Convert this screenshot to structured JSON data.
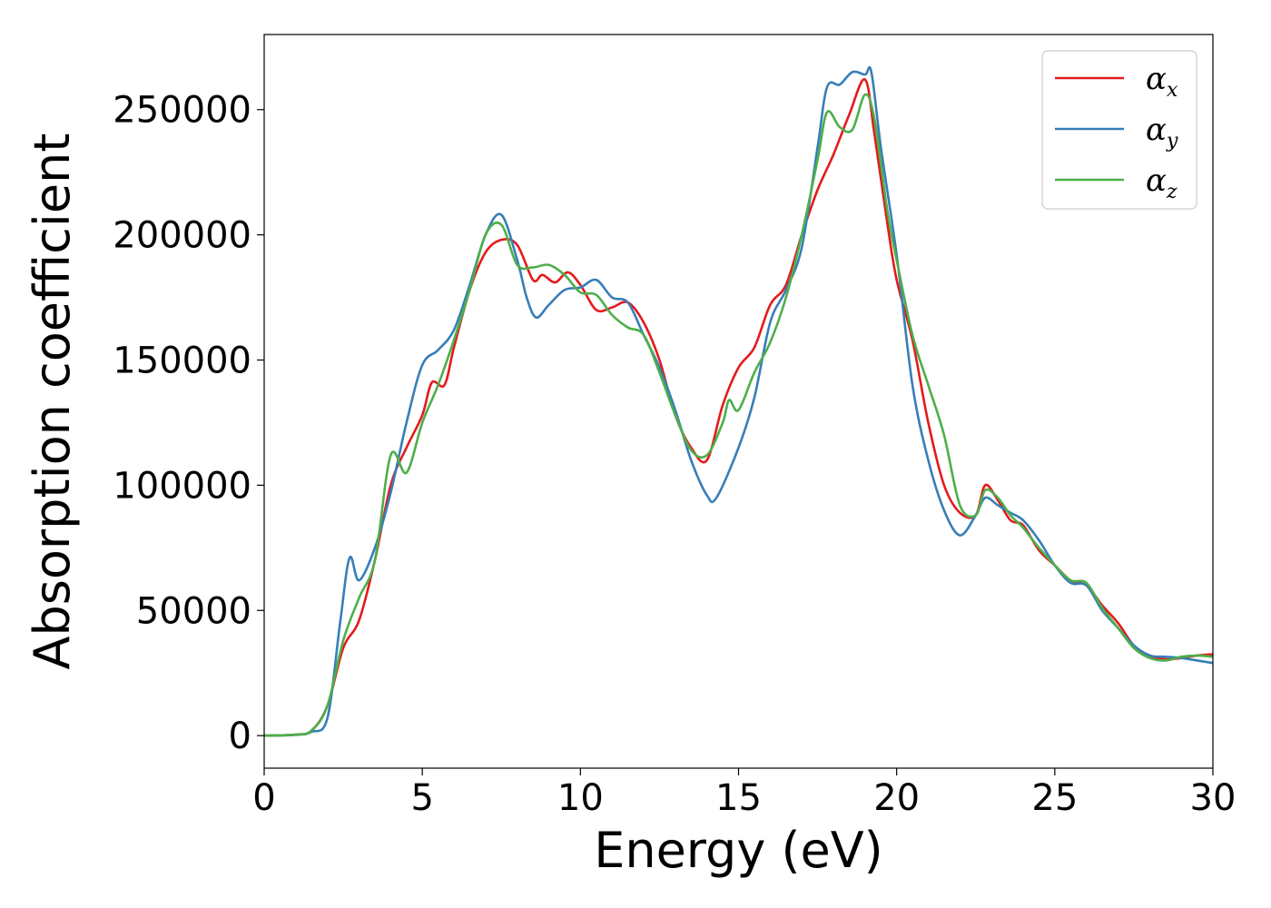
{
  "chart_data": {
    "type": "line",
    "xlabel": "Energy (eV)",
    "ylabel": "Absorption coefficient",
    "xlim": [
      0,
      30
    ],
    "ylim": [
      -13000,
      280000
    ],
    "xticks": [
      0,
      5,
      10,
      15,
      20,
      25,
      30
    ],
    "yticks": [
      0,
      50000,
      100000,
      150000,
      200000,
      250000
    ],
    "grid": false,
    "legend_position": "top-right",
    "series": [
      {
        "name": "α_x",
        "symbol": "α",
        "subscript": "x",
        "color": "#e41a1c",
        "points": [
          [
            0,
            0
          ],
          [
            1,
            400
          ],
          [
            1.5,
            2000
          ],
          [
            2,
            12000
          ],
          [
            2.5,
            35000
          ],
          [
            3,
            46000
          ],
          [
            3.5,
            70000
          ],
          [
            4,
            100000
          ],
          [
            4.5,
            115000
          ],
          [
            5,
            128000
          ],
          [
            5.3,
            141000
          ],
          [
            5.7,
            140000
          ],
          [
            6,
            155000
          ],
          [
            6.5,
            178000
          ],
          [
            7,
            193000
          ],
          [
            7.5,
            198000
          ],
          [
            8,
            196000
          ],
          [
            8.5,
            182000
          ],
          [
            8.8,
            184000
          ],
          [
            9.2,
            181000
          ],
          [
            9.6,
            185000
          ],
          [
            10,
            180000
          ],
          [
            10.5,
            170000
          ],
          [
            11,
            171000
          ],
          [
            11.5,
            173000
          ],
          [
            12,
            165000
          ],
          [
            12.5,
            150000
          ],
          [
            13,
            128000
          ],
          [
            13.5,
            115000
          ],
          [
            14,
            110000
          ],
          [
            14.5,
            132000
          ],
          [
            15,
            147000
          ],
          [
            15.5,
            155000
          ],
          [
            16,
            172000
          ],
          [
            16.5,
            180000
          ],
          [
            17,
            200000
          ],
          [
            17.5,
            218000
          ],
          [
            18,
            232000
          ],
          [
            18.5,
            248000
          ],
          [
            19,
            262000
          ],
          [
            19.3,
            240000
          ],
          [
            19.7,
            205000
          ],
          [
            20,
            182000
          ],
          [
            20.5,
            158000
          ],
          [
            21,
            125000
          ],
          [
            21.5,
            100000
          ],
          [
            22,
            89000
          ],
          [
            22.5,
            88000
          ],
          [
            22.8,
            100000
          ],
          [
            23.2,
            94000
          ],
          [
            23.6,
            86000
          ],
          [
            24,
            84000
          ],
          [
            24.5,
            74000
          ],
          [
            25,
            68000
          ],
          [
            25.5,
            62000
          ],
          [
            26,
            60000
          ],
          [
            26.5,
            52000
          ],
          [
            27,
            45000
          ],
          [
            27.5,
            36000
          ],
          [
            28,
            32000
          ],
          [
            28.5,
            30500
          ],
          [
            29,
            31000
          ],
          [
            29.5,
            32000
          ],
          [
            30,
            32500
          ]
        ]
      },
      {
        "name": "α_y",
        "symbol": "α",
        "subscript": "y",
        "color": "#377eb8",
        "points": [
          [
            0,
            0
          ],
          [
            1,
            300
          ],
          [
            1.5,
            1500
          ],
          [
            2,
            7000
          ],
          [
            2.4,
            45000
          ],
          [
            2.7,
            71000
          ],
          [
            3,
            62000
          ],
          [
            3.5,
            75000
          ],
          [
            4,
            97000
          ],
          [
            4.5,
            125000
          ],
          [
            5,
            148000
          ],
          [
            5.5,
            154000
          ],
          [
            6,
            162000
          ],
          [
            6.5,
            180000
          ],
          [
            7,
            200000
          ],
          [
            7.5,
            208000
          ],
          [
            8,
            190000
          ],
          [
            8.3,
            175000
          ],
          [
            8.6,
            167000
          ],
          [
            9,
            172000
          ],
          [
            9.5,
            178000
          ],
          [
            10,
            179000
          ],
          [
            10.5,
            182000
          ],
          [
            11,
            175000
          ],
          [
            11.5,
            173000
          ],
          [
            12,
            160000
          ],
          [
            12.5,
            147000
          ],
          [
            13,
            130000
          ],
          [
            13.5,
            110000
          ],
          [
            14,
            96000
          ],
          [
            14.3,
            95000
          ],
          [
            15,
            115000
          ],
          [
            15.5,
            135000
          ],
          [
            16,
            165000
          ],
          [
            16.5,
            178000
          ],
          [
            17,
            195000
          ],
          [
            17.5,
            235000
          ],
          [
            17.8,
            259000
          ],
          [
            18.2,
            260000
          ],
          [
            18.6,
            265000
          ],
          [
            19,
            264000
          ],
          [
            19.2,
            265000
          ],
          [
            19.5,
            235000
          ],
          [
            20,
            192000
          ],
          [
            20.5,
            140000
          ],
          [
            21,
            110000
          ],
          [
            21.5,
            90000
          ],
          [
            22,
            80000
          ],
          [
            22.5,
            88000
          ],
          [
            22.8,
            95000
          ],
          [
            23.2,
            92000
          ],
          [
            23.6,
            89000
          ],
          [
            24,
            86000
          ],
          [
            24.5,
            78000
          ],
          [
            25,
            68000
          ],
          [
            25.5,
            61000
          ],
          [
            26,
            60000
          ],
          [
            26.5,
            50000
          ],
          [
            27,
            43000
          ],
          [
            27.5,
            36000
          ],
          [
            28,
            32000
          ],
          [
            28.5,
            31500
          ],
          [
            29,
            31000
          ],
          [
            29.5,
            30000
          ],
          [
            30,
            29000
          ]
        ]
      },
      {
        "name": "α_z",
        "symbol": "α",
        "subscript": "z",
        "color": "#4daf4a",
        "points": [
          [
            0,
            0
          ],
          [
            1,
            400
          ],
          [
            1.5,
            2000
          ],
          [
            2,
            12000
          ],
          [
            2.5,
            38000
          ],
          [
            3,
            55000
          ],
          [
            3.5,
            70000
          ],
          [
            4,
            112000
          ],
          [
            4.5,
            105000
          ],
          [
            5,
            125000
          ],
          [
            5.5,
            140000
          ],
          [
            6,
            158000
          ],
          [
            6.5,
            178000
          ],
          [
            7,
            200000
          ],
          [
            7.5,
            204000
          ],
          [
            8,
            188000
          ],
          [
            8.5,
            187000
          ],
          [
            9,
            188000
          ],
          [
            9.5,
            184000
          ],
          [
            10,
            177000
          ],
          [
            10.5,
            176000
          ],
          [
            11,
            168000
          ],
          [
            11.5,
            163000
          ],
          [
            12,
            160000
          ],
          [
            12.5,
            145000
          ],
          [
            13,
            128000
          ],
          [
            13.5,
            114000
          ],
          [
            14,
            112000
          ],
          [
            14.5,
            125000
          ],
          [
            14.7,
            134000
          ],
          [
            15,
            130000
          ],
          [
            15.5,
            145000
          ],
          [
            16,
            157000
          ],
          [
            16.5,
            175000
          ],
          [
            17,
            200000
          ],
          [
            17.5,
            230000
          ],
          [
            17.8,
            249000
          ],
          [
            18.2,
            243000
          ],
          [
            18.6,
            242000
          ],
          [
            19,
            256000
          ],
          [
            19.3,
            246000
          ],
          [
            19.7,
            210000
          ],
          [
            20,
            190000
          ],
          [
            20.5,
            160000
          ],
          [
            21,
            140000
          ],
          [
            21.5,
            120000
          ],
          [
            22,
            92000
          ],
          [
            22.5,
            88000
          ],
          [
            22.8,
            98000
          ],
          [
            23.2,
            95000
          ],
          [
            23.6,
            88000
          ],
          [
            24,
            83000
          ],
          [
            24.5,
            75000
          ],
          [
            25,
            68000
          ],
          [
            25.5,
            62000
          ],
          [
            26,
            61000
          ],
          [
            26.5,
            51000
          ],
          [
            27,
            43000
          ],
          [
            27.5,
            35000
          ],
          [
            28,
            31000
          ],
          [
            28.5,
            30000
          ],
          [
            29,
            31500
          ],
          [
            29.5,
            32000
          ],
          [
            30,
            31500
          ]
        ]
      }
    ]
  }
}
